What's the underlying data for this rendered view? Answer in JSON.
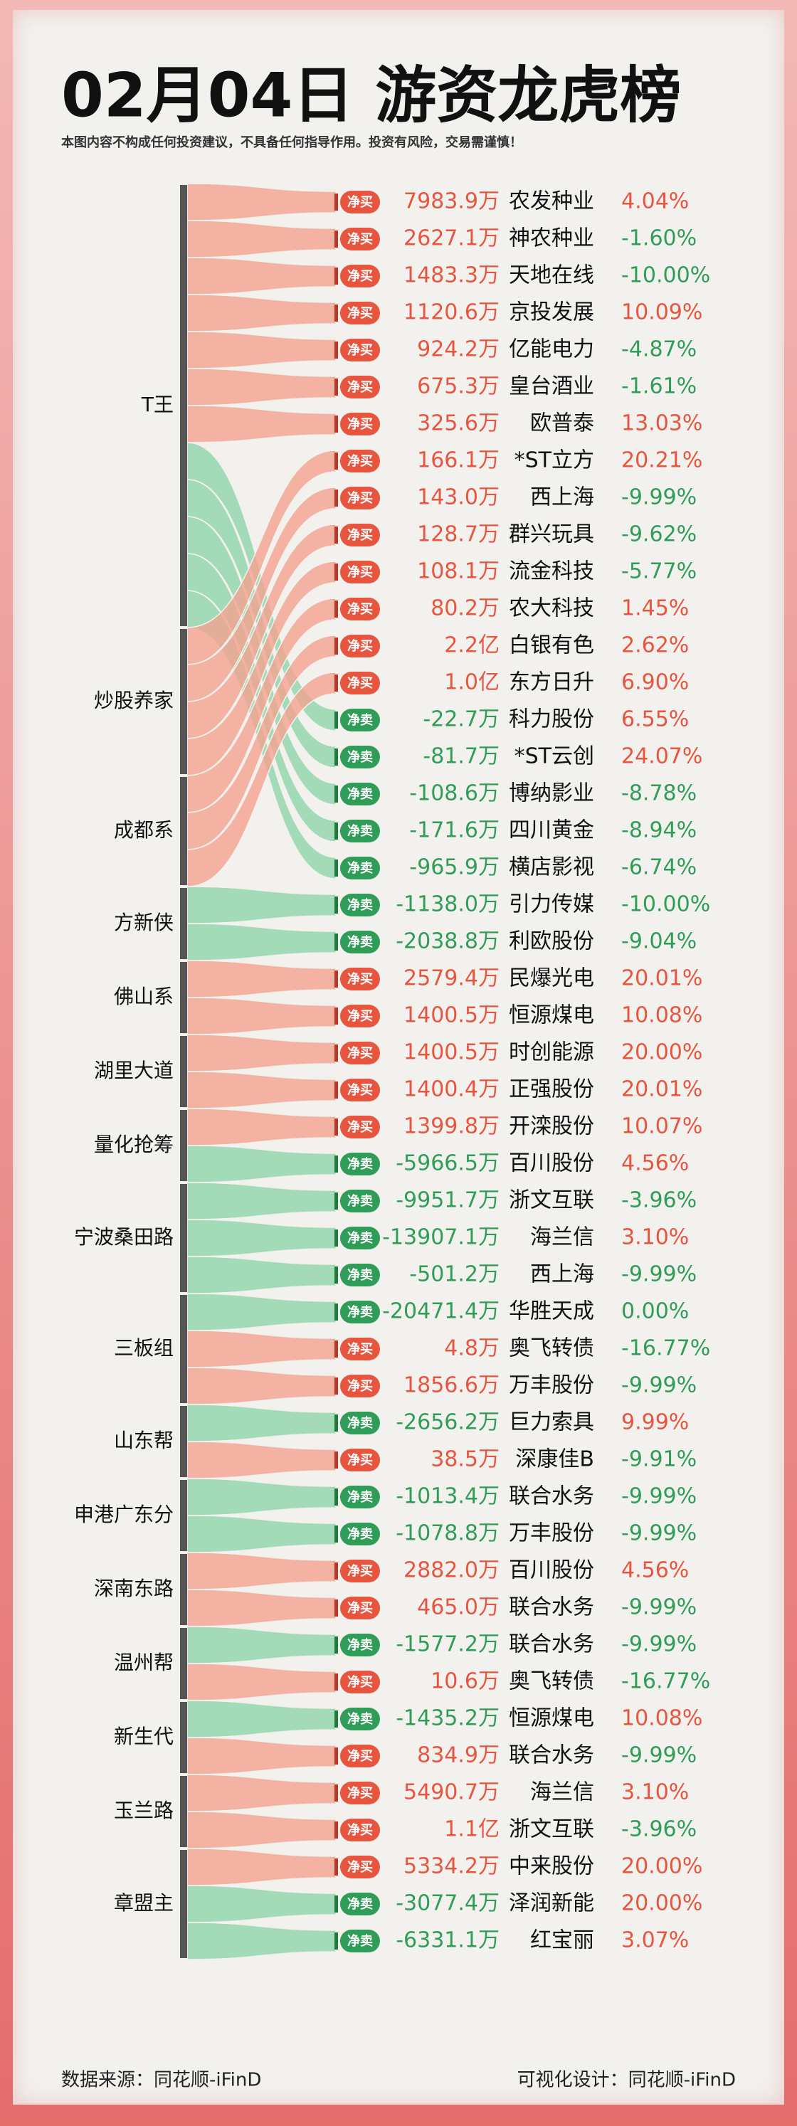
{
  "header": {
    "title": "02月04日 游资龙虎榜",
    "disclaimer": "本图内容不构成任何投资建议，不具备任何指导作用。投资有风险，交易需谨慎！"
  },
  "rows": [
    {
      "badge": "净买",
      "amount": "7983.9万",
      "name": "农发种业",
      "change": "4.04%"
    },
    {
      "badge": "净买",
      "amount": "2627.1万",
      "name": "神农种业",
      "change": "-1.60%"
    },
    {
      "badge": "净买",
      "amount": "1483.3万",
      "name": "天地在线",
      "change": "-10.00%"
    },
    {
      "badge": "净买",
      "amount": "1120.6万",
      "name": "京投发展",
      "change": "10.09%"
    },
    {
      "badge": "净买",
      "amount": "924.2万",
      "name": "亿能电力",
      "change": "-4.87%"
    },
    {
      "badge": "净买",
      "amount": "675.3万",
      "name": "皇台酒业",
      "change": "-1.61%"
    },
    {
      "badge": "净买",
      "amount": "325.6万",
      "name": "欧普泰",
      "change": "13.03%"
    },
    {
      "badge": "净买",
      "amount": "166.1万",
      "name": "*ST立方",
      "change": "20.21%"
    },
    {
      "badge": "净买",
      "amount": "143.0万",
      "name": "西上海",
      "change": "-9.99%"
    },
    {
      "badge": "净买",
      "amount": "128.7万",
      "name": "群兴玩具",
      "change": "-9.62%"
    },
    {
      "badge": "净买",
      "amount": "108.1万",
      "name": "流金科技",
      "change": "-5.77%"
    },
    {
      "badge": "净买",
      "amount": "80.2万",
      "name": "农大科技",
      "change": "1.45%"
    },
    {
      "badge": "净买",
      "amount": "2.2亿",
      "name": "白银有色",
      "change": "2.62%"
    },
    {
      "badge": "净买",
      "amount": "1.0亿",
      "name": "东方日升",
      "change": "6.90%"
    },
    {
      "badge": "净卖",
      "amount": "-22.7万",
      "name": "科力股份",
      "change": "6.55%"
    },
    {
      "badge": "净卖",
      "amount": "-81.7万",
      "name": "*ST云创",
      "change": "24.07%"
    },
    {
      "badge": "净卖",
      "amount": "-108.6万",
      "name": "博纳影业",
      "change": "-8.78%"
    },
    {
      "badge": "净卖",
      "amount": "-171.6万",
      "name": "四川黄金",
      "change": "-8.94%"
    },
    {
      "badge": "净卖",
      "amount": "-965.9万",
      "name": "横店影视",
      "change": "-6.74%"
    },
    {
      "badge": "净卖",
      "amount": "-1138.0万",
      "name": "引力传媒",
      "change": "-10.00%"
    },
    {
      "badge": "净卖",
      "amount": "-2038.8万",
      "name": "利欧股份",
      "change": "-9.04%"
    },
    {
      "badge": "净买",
      "amount": "2579.4万",
      "name": "民爆光电",
      "change": "20.01%"
    },
    {
      "badge": "净买",
      "amount": "1400.5万",
      "name": "恒源煤电",
      "change": "10.08%"
    },
    {
      "badge": "净买",
      "amount": "1400.5万",
      "name": "时创能源",
      "change": "20.00%"
    },
    {
      "badge": "净买",
      "amount": "1400.4万",
      "name": "正强股份",
      "change": "20.01%"
    },
    {
      "badge": "净买",
      "amount": "1399.8万",
      "name": "开滦股份",
      "change": "10.07%"
    },
    {
      "badge": "净卖",
      "amount": "-5966.5万",
      "name": "百川股份",
      "change": "4.56%"
    },
    {
      "badge": "净卖",
      "amount": "-9951.7万",
      "name": "浙文互联",
      "change": "-3.96%"
    },
    {
      "badge": "净卖",
      "amount": "-13907.1万",
      "name": "海兰信",
      "change": "3.10%"
    },
    {
      "badge": "净卖",
      "amount": "-501.2万",
      "name": "西上海",
      "change": "-9.99%"
    },
    {
      "badge": "净卖",
      "amount": "-20471.4万",
      "name": "华胜天成",
      "change": "0.00%"
    },
    {
      "badge": "净买",
      "amount": "4.8万",
      "name": "奥飞转债",
      "change": "-16.77%"
    },
    {
      "badge": "净买",
      "amount": "1856.6万",
      "name": "万丰股份",
      "change": "-9.99%"
    },
    {
      "badge": "净卖",
      "amount": "-2656.2万",
      "name": "巨力索具",
      "change": "9.99%"
    },
    {
      "badge": "净买",
      "amount": "38.5万",
      "name": "深康佳B",
      "change": "-9.91%"
    },
    {
      "badge": "净卖",
      "amount": "-1013.4万",
      "name": "联合水务",
      "change": "-9.99%"
    },
    {
      "badge": "净卖",
      "amount": "-1078.8万",
      "name": "万丰股份",
      "change": "-9.99%"
    },
    {
      "badge": "净买",
      "amount": "2882.0万",
      "name": "百川股份",
      "change": "4.56%"
    },
    {
      "badge": "净买",
      "amount": "465.0万",
      "name": "联合水务",
      "change": "-9.99%"
    },
    {
      "badge": "净卖",
      "amount": "-1577.2万",
      "name": "联合水务",
      "change": "-9.99%"
    },
    {
      "badge": "净买",
      "amount": "10.6万",
      "name": "奥飞转债",
      "change": "-16.77%"
    },
    {
      "badge": "净卖",
      "amount": "-1435.2万",
      "name": "恒源煤电",
      "change": "10.08%"
    },
    {
      "badge": "净买",
      "amount": "834.9万",
      "name": "联合水务",
      "change": "-9.99%"
    },
    {
      "badge": "净买",
      "amount": "5490.7万",
      "name": "海兰信",
      "change": "3.10%"
    },
    {
      "badge": "净买",
      "amount": "1.1亿",
      "name": "浙文互联",
      "change": "-3.96%"
    },
    {
      "badge": "净买",
      "amount": "5334.2万",
      "name": "中来股份",
      "change": "20.00%"
    },
    {
      "badge": "净卖",
      "amount": "-3077.4万",
      "name": "泽润新能",
      "change": "20.00%"
    },
    {
      "badge": "净卖",
      "amount": "-6331.1万",
      "name": "红宝丽",
      "change": "3.07%"
    }
  ],
  "groups": [
    {
      "name": "T王",
      "rows": [
        0,
        1,
        2,
        3,
        4,
        5,
        6,
        14,
        15,
        16,
        17,
        18
      ]
    },
    {
      "name": "炒股养家",
      "rows": [
        7,
        8,
        9,
        10
      ]
    },
    {
      "name": "成都系",
      "rows": [
        11,
        12,
        13
      ]
    },
    {
      "name": "方新侠",
      "rows": [
        19,
        20
      ]
    },
    {
      "name": "佛山系",
      "rows": [
        21,
        22
      ]
    },
    {
      "name": "湖里大道",
      "rows": [
        23,
        24
      ]
    },
    {
      "name": "量化抢筹",
      "rows": [
        25,
        26
      ]
    },
    {
      "name": "宁波桑田路",
      "rows": [
        27,
        28,
        29
      ]
    },
    {
      "name": "三板组",
      "rows": [
        30,
        31,
        32
      ]
    },
    {
      "name": "山东帮",
      "rows": [
        33,
        34
      ]
    },
    {
      "name": "申港广东分",
      "rows": [
        35,
        36
      ]
    },
    {
      "name": "深南东路",
      "rows": [
        37,
        38
      ]
    },
    {
      "name": "温州帮",
      "rows": [
        39,
        40
      ]
    },
    {
      "name": "新生代",
      "rows": [
        41,
        42
      ]
    },
    {
      "name": "玉兰路",
      "rows": [
        43,
        44
      ]
    },
    {
      "name": "章盟主",
      "rows": [
        45,
        46,
        47
      ]
    }
  ],
  "footer": {
    "source": "数据来源：同花顺-iFinD",
    "design": "可视化设计：同花顺-iFinD"
  }
}
